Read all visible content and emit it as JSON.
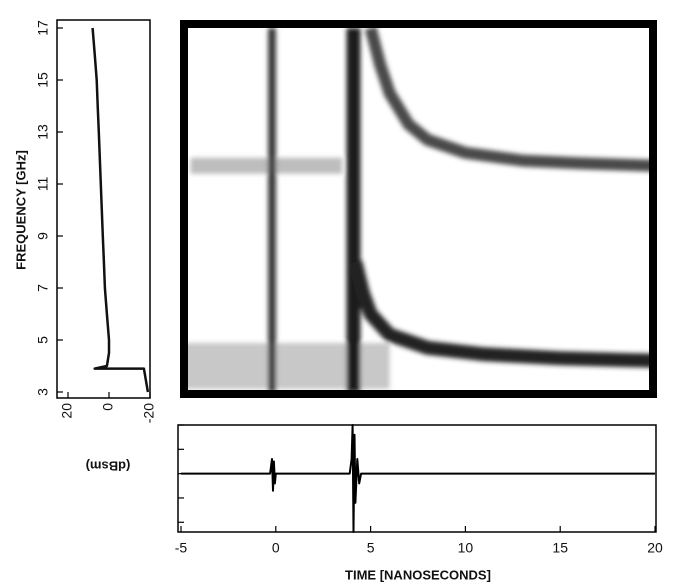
{
  "chart_data": [
    {
      "type": "line",
      "xlabel": "(dBsm)",
      "ylabel": "FREQUENCY [GHz]",
      "xlim": [
        20,
        -20
      ],
      "xticks": [
        20,
        0,
        -20
      ],
      "ylim": [
        3,
        17
      ],
      "yticks": [
        3,
        5,
        7,
        9,
        11,
        13,
        15,
        17
      ],
      "series": [
        {
          "color": "#111111",
          "linewidth": 2.5,
          "x": [
            -19,
            -17,
            7,
            1,
            0,
            0,
            1,
            2,
            2.5,
            3,
            3.5,
            4,
            4.5,
            5,
            5.5,
            6,
            7,
            8
          ],
          "y": [
            3,
            3.9,
            3.9,
            4,
            4.5,
            5,
            6,
            7,
            8,
            9,
            10,
            11,
            12,
            13,
            14,
            15,
            16,
            17
          ]
        }
      ]
    },
    {
      "type": "line",
      "xlim": [
        -5,
        20
      ],
      "ylim": [
        3,
        17
      ],
      "series": [
        {
          "color": "#c8c8c8",
          "linewidth": 46,
          "x": [
            -5,
            6
          ],
          "y": [
            4,
            4
          ]
        },
        {
          "color": "#bdbdbd",
          "linewidth": 16,
          "x": [
            -4.5,
            3.5
          ],
          "y": [
            11.7,
            11.7
          ]
        },
        {
          "color": "#3a3a3a",
          "linewidth": 8,
          "x": [
            -0.2,
            -0.2
          ],
          "y": [
            3,
            17
          ]
        },
        {
          "color": "#1a1a1a",
          "linewidth": 14,
          "x": [
            4.1,
            4.1
          ],
          "y": [
            3,
            17
          ]
        },
        {
          "color": "#4a4a4a",
          "linewidth": 12,
          "x": [
            5,
            5.5,
            6,
            7,
            8,
            10,
            13,
            16,
            20
          ],
          "y": [
            17,
            15.6,
            14.5,
            13.3,
            12.7,
            12.2,
            11.9,
            11.8,
            11.7
          ]
        },
        {
          "color": "#222222",
          "linewidth": 14,
          "x": [
            4.2,
            4.6,
            5,
            6,
            8,
            11,
            15,
            20
          ],
          "y": [
            8,
            6.8,
            6,
            5.2,
            4.7,
            4.45,
            4.3,
            4.2
          ]
        }
      ]
    },
    {
      "type": "line",
      "xlabel": "TIME [NANOSECONDS]",
      "xlim": [
        -5,
        20
      ],
      "xticks": [
        -5,
        0,
        5,
        10,
        15,
        20
      ],
      "ylim": [
        -1.2,
        1
      ],
      "yticks": [
        -1,
        -0.5,
        0,
        0.5,
        1
      ],
      "ytick_labels": false,
      "series": [
        {
          "color": "#000000",
          "linewidth": 2,
          "x": [
            -5,
            -0.3,
            -0.2,
            -0.15,
            -0.1,
            -0.05,
            0,
            3.9,
            4.0,
            4.05,
            4.1,
            4.15,
            4.2,
            4.3,
            4.4,
            4.5,
            20
          ],
          "y": [
            0,
            0,
            0.3,
            -0.35,
            0.25,
            -0.2,
            0,
            0,
            0.3,
            1,
            -1.2,
            0.8,
            -0.6,
            0.3,
            -0.2,
            0,
            0
          ]
        }
      ]
    }
  ]
}
